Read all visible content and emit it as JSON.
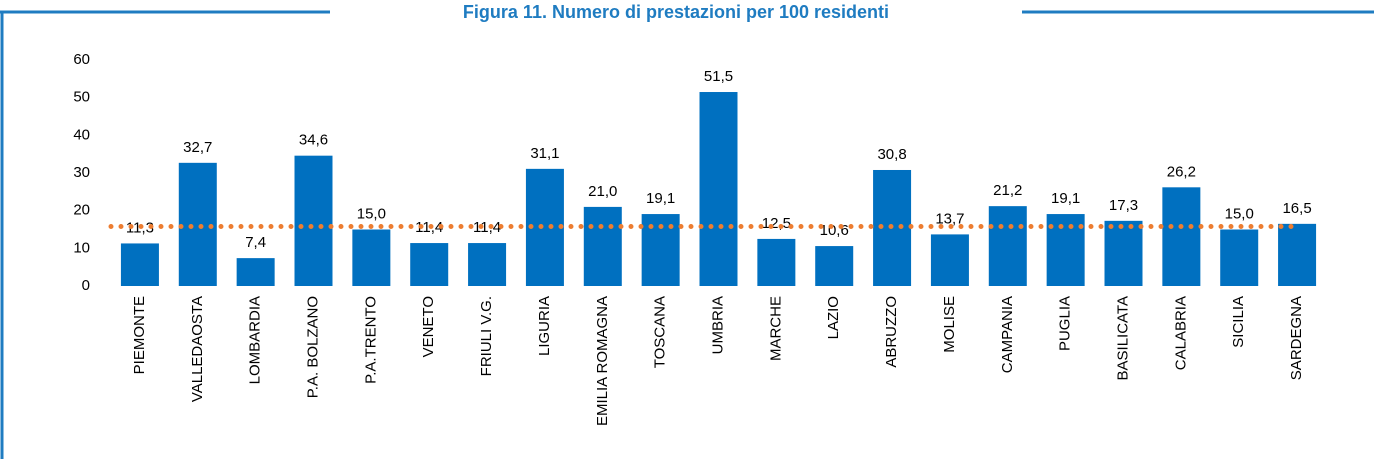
{
  "chart_data": {
    "type": "bar",
    "title": "Figura 11. Numero di prestazioni per 100 residenti",
    "categories": [
      "PIEMONTE",
      "VALLEDAOSTA",
      "LOMBARDIA",
      "P.A. BOLZANO",
      "P.A.TRENTO",
      "VENETO",
      "FRIULI V.G.",
      "LIGURIA",
      "EMILIA ROMAGNA",
      "TOSCANA",
      "UMBRIA",
      "MARCHE",
      "LAZIO",
      "ABRUZZO",
      "MOLISE",
      "CAMPANIA",
      "PUGLIA",
      "BASILICATA",
      "CALABRIA",
      "SICILIA",
      "SARDEGNA"
    ],
    "values": [
      11.3,
      32.7,
      7.4,
      34.6,
      15.0,
      11.4,
      11.4,
      31.1,
      21.0,
      19.1,
      51.5,
      12.5,
      10.6,
      30.8,
      13.7,
      21.2,
      19.1,
      17.3,
      26.2,
      15.0,
      16.5
    ],
    "value_labels": [
      "11,3",
      "32,7",
      "7,4",
      "34,6",
      "15,0",
      "11,4",
      "11,4",
      "31,1",
      "21,0",
      "19,1",
      "51,5",
      "12,5",
      "10,6",
      "30,8",
      "13,7",
      "21,2",
      "19,1",
      "17,3",
      "26,2",
      "15,0",
      "16,5"
    ],
    "color": "#0070c0",
    "reference_line": {
      "value": 15.8,
      "color": "#ed7d31"
    },
    "ylim": [
      0,
      60
    ],
    "yticks": [
      0,
      10,
      20,
      30,
      40,
      50,
      60
    ],
    "grid": false
  }
}
